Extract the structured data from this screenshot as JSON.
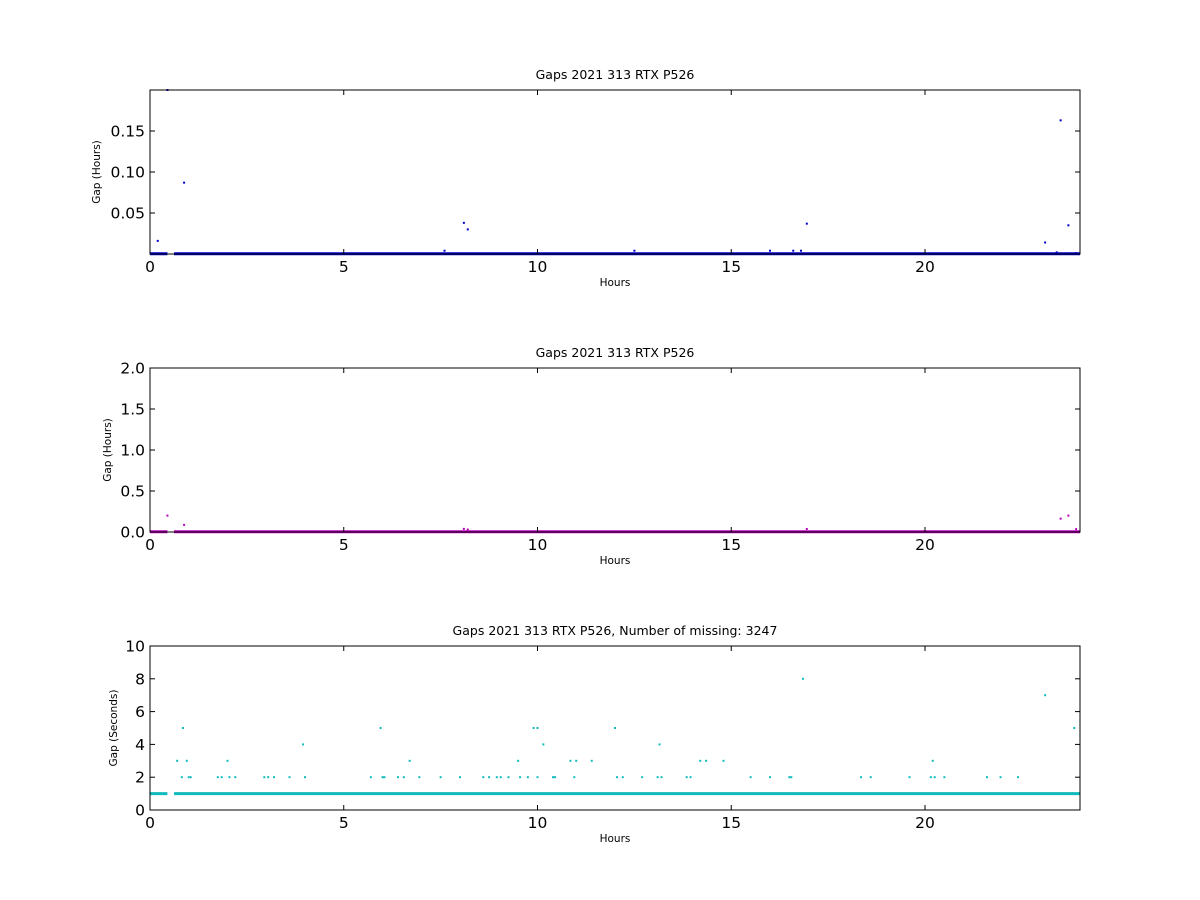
{
  "chart_data": [
    {
      "type": "scatter",
      "title": "Gaps 2021 313 RTX  P526",
      "xlabel": "Hours",
      "ylabel": "Gap (Hours)",
      "xlim": [
        0,
        24
      ],
      "ylim": [
        0,
        0.2
      ],
      "xticks": [
        0,
        5,
        10,
        15,
        20
      ],
      "yticks": [
        0.05,
        0.1,
        0.15
      ],
      "ytick_labels": [
        "0.05",
        "0.10",
        "0.15"
      ],
      "grid": false,
      "color": "#0000cc",
      "baseline": 0.0003,
      "baseline_segments": [
        [
          0,
          0.45
        ],
        [
          0.62,
          24
        ]
      ],
      "points": [
        [
          0.2,
          0.016
        ],
        [
          0.45,
          0.2
        ],
        [
          0.88,
          0.087
        ],
        [
          7.6,
          0.004
        ],
        [
          8.1,
          0.038
        ],
        [
          8.2,
          0.03
        ],
        [
          12.5,
          0.004
        ],
        [
          16.0,
          0.004
        ],
        [
          16.6,
          0.004
        ],
        [
          16.8,
          0.004
        ],
        [
          16.95,
          0.037
        ],
        [
          23.1,
          0.014
        ],
        [
          23.4,
          0.002
        ],
        [
          23.5,
          0.163
        ],
        [
          23.7,
          0.035
        ],
        [
          23.9,
          0.001
        ]
      ]
    },
    {
      "type": "scatter",
      "title": "Gaps 2021 313 RTX  P526",
      "xlabel": "Hours",
      "ylabel": "Gap (Hours)",
      "xlim": [
        0,
        24
      ],
      "ylim": [
        0,
        2.0
      ],
      "xticks": [
        0,
        5,
        10,
        15,
        20
      ],
      "yticks": [
        0,
        0.5,
        1.0,
        1.5,
        2.0
      ],
      "ytick_labels": [
        "0.0",
        "0.5",
        "1.0",
        "1.5",
        "2.0"
      ],
      "grid": false,
      "color": "#bb00bb",
      "baseline": 0.003,
      "baseline_segments": [
        [
          0,
          0.45
        ],
        [
          0.62,
          24
        ]
      ],
      "points": [
        [
          0.45,
          0.2
        ],
        [
          0.88,
          0.087
        ],
        [
          8.1,
          0.038
        ],
        [
          8.2,
          0.03
        ],
        [
          16.95,
          0.037
        ],
        [
          23.5,
          0.163
        ],
        [
          23.7,
          0.2
        ],
        [
          23.9,
          0.035
        ]
      ]
    },
    {
      "type": "scatter",
      "title": "Gaps 2021 313 RTX  P526, Number of missing: 3247",
      "xlabel": "Hours",
      "ylabel": "Gap (Seconds)",
      "xlim": [
        0,
        24
      ],
      "ylim": [
        0,
        10
      ],
      "xticks": [
        0,
        5,
        10,
        15,
        20
      ],
      "yticks": [
        0,
        2,
        4,
        6,
        8,
        10
      ],
      "ytick_labels": [
        "0",
        "2",
        "4",
        "6",
        "8",
        "10"
      ],
      "grid": false,
      "color": "#11bbbb",
      "baseline": 1,
      "baseline_segments": [
        [
          0,
          0.45
        ],
        [
          0.62,
          24
        ]
      ],
      "points": [
        [
          0.7,
          3
        ],
        [
          0.82,
          2
        ],
        [
          0.85,
          5
        ],
        [
          0.95,
          3
        ],
        [
          1.0,
          2
        ],
        [
          1.05,
          2
        ],
        [
          1.75,
          2
        ],
        [
          1.85,
          2
        ],
        [
          2.0,
          3
        ],
        [
          2.05,
          2
        ],
        [
          2.2,
          2
        ],
        [
          2.95,
          2
        ],
        [
          3.05,
          2
        ],
        [
          3.2,
          2
        ],
        [
          3.6,
          2
        ],
        [
          3.95,
          4
        ],
        [
          4.0,
          2
        ],
        [
          5.7,
          2
        ],
        [
          5.95,
          5
        ],
        [
          6.0,
          2
        ],
        [
          6.05,
          2
        ],
        [
          6.4,
          2
        ],
        [
          6.55,
          2
        ],
        [
          6.7,
          3
        ],
        [
          6.95,
          2
        ],
        [
          7.5,
          2
        ],
        [
          8.0,
          2
        ],
        [
          8.6,
          2
        ],
        [
          8.75,
          2
        ],
        [
          8.95,
          2
        ],
        [
          9.05,
          2
        ],
        [
          9.25,
          2
        ],
        [
          9.5,
          3
        ],
        [
          9.55,
          2
        ],
        [
          9.75,
          2
        ],
        [
          9.9,
          5
        ],
        [
          10.0,
          5
        ],
        [
          10.0,
          2
        ],
        [
          10.15,
          4
        ],
        [
          10.4,
          2
        ],
        [
          10.45,
          2
        ],
        [
          10.85,
          3
        ],
        [
          10.95,
          2
        ],
        [
          11.0,
          3
        ],
        [
          11.4,
          3
        ],
        [
          12.0,
          5
        ],
        [
          12.05,
          2
        ],
        [
          12.2,
          2
        ],
        [
          12.7,
          2
        ],
        [
          13.1,
          2
        ],
        [
          13.15,
          4
        ],
        [
          13.2,
          2
        ],
        [
          13.85,
          2
        ],
        [
          13.95,
          2
        ],
        [
          14.2,
          3
        ],
        [
          14.35,
          3
        ],
        [
          14.8,
          3
        ],
        [
          15.5,
          2
        ],
        [
          16.0,
          2
        ],
        [
          16.5,
          2
        ],
        [
          16.55,
          2
        ],
        [
          16.85,
          8
        ],
        [
          18.35,
          2
        ],
        [
          18.6,
          2
        ],
        [
          19.6,
          2
        ],
        [
          20.15,
          2
        ],
        [
          20.2,
          3
        ],
        [
          20.25,
          2
        ],
        [
          20.5,
          2
        ],
        [
          21.6,
          2
        ],
        [
          21.95,
          2
        ],
        [
          22.4,
          2
        ],
        [
          23.1,
          7
        ],
        [
          23.85,
          5
        ]
      ]
    }
  ]
}
